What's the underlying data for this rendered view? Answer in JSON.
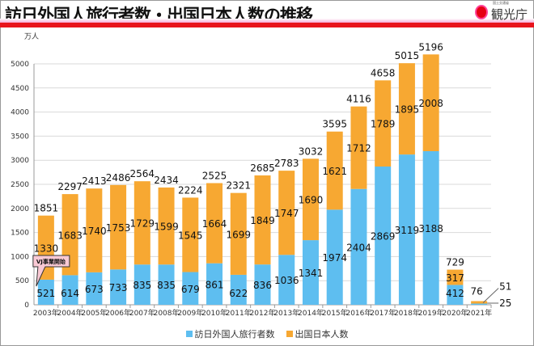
{
  "header": {
    "title": "訪日外国人旅行者数・出国日本人数の推移",
    "logo_text": "観光庁",
    "logo_subtext": "国土交通省"
  },
  "chart_data": {
    "type": "bar",
    "stacked": true,
    "title": "訪日外国人旅行者数・出国日本人数の推移",
    "ylabel": "万人",
    "ylim": [
      0,
      5000
    ],
    "yticks": [
      0,
      500,
      1000,
      1500,
      2000,
      2500,
      3000,
      3500,
      4000,
      4500,
      5000
    ],
    "grid": true,
    "legend_position": "bottom",
    "categories": [
      "2003年",
      "2004年",
      "2005年",
      "2006年",
      "2007年",
      "2008年",
      "2009年",
      "2010年",
      "2011年",
      "2012年",
      "2013年",
      "2014年",
      "2015年",
      "2016年",
      "2017年",
      "2018年",
      "2019年",
      "2020年",
      "2021年"
    ],
    "series": [
      {
        "name": "訪日外国人旅行者数",
        "color": "#5ebef0",
        "values": [
          521,
          614,
          673,
          733,
          835,
          835,
          679,
          861,
          622,
          836,
          1036,
          1341,
          1974,
          2404,
          2869,
          3119,
          3188,
          412,
          25
        ]
      },
      {
        "name": "出国日本人数",
        "color": "#f7a832",
        "values": [
          1330,
          1683,
          1740,
          1753,
          1729,
          1599,
          1545,
          1664,
          1699,
          1849,
          1747,
          1690,
          1621,
          1712,
          1789,
          1895,
          2008,
          317,
          51
        ]
      }
    ],
    "totals": [
      1851,
      2297,
      2413,
      2486,
      2564,
      2434,
      2224,
      2525,
      2321,
      2685,
      2783,
      3032,
      3595,
      4116,
      4658,
      5015,
      5196,
      729,
      76
    ],
    "annotations": [
      {
        "text": "VJ事業開始",
        "category": "2003年"
      }
    ]
  }
}
